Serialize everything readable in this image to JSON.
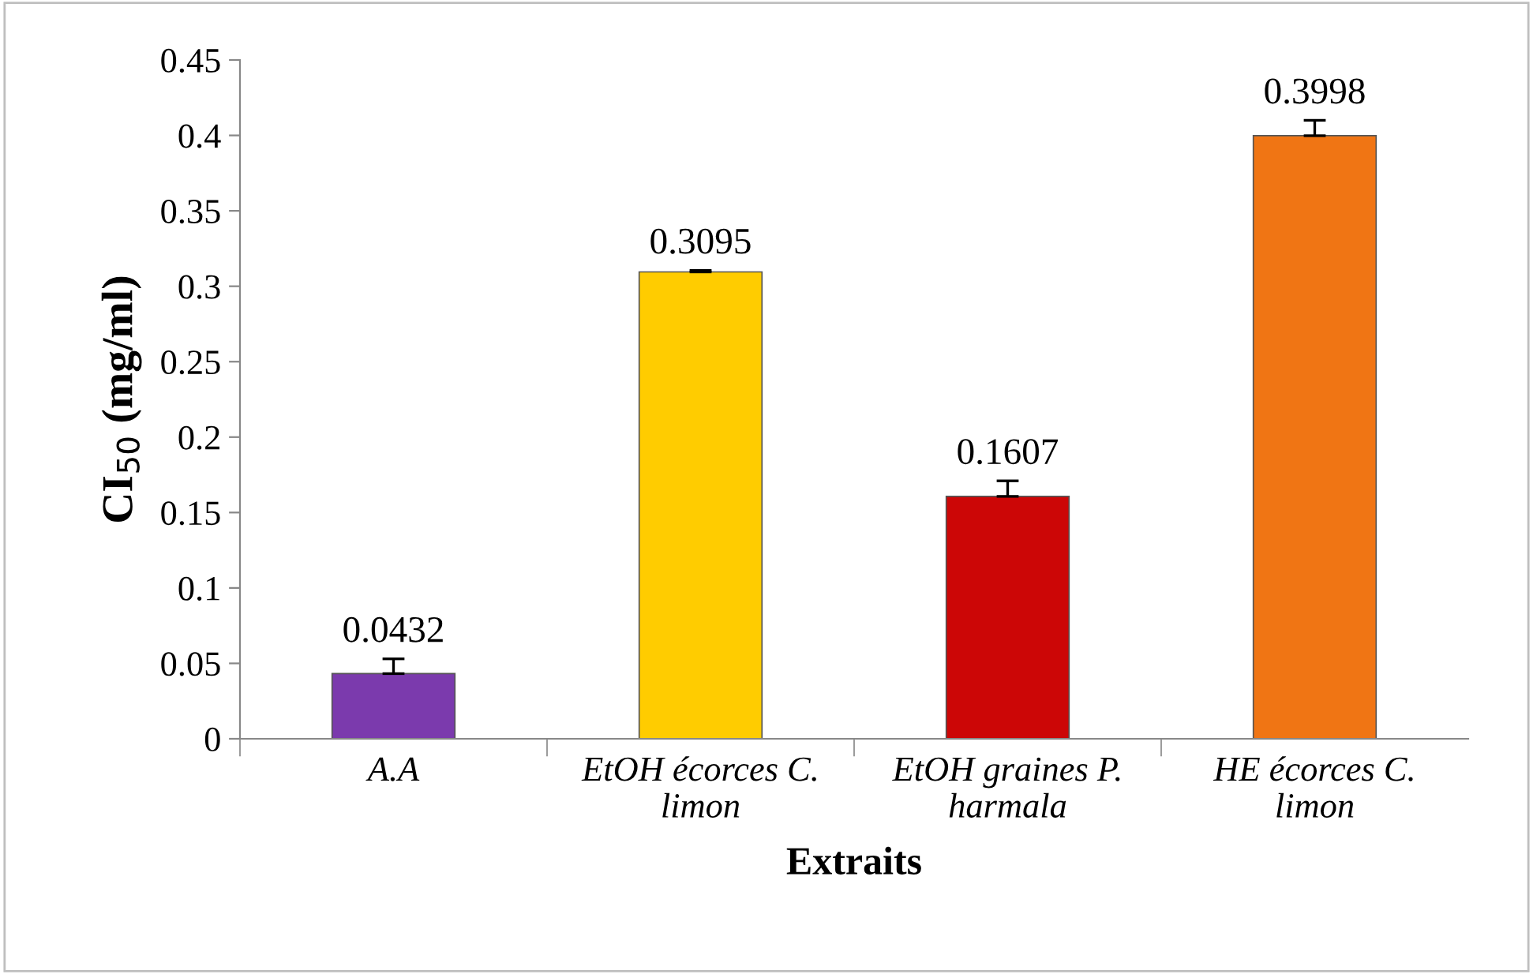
{
  "chart_data": {
    "type": "bar",
    "xlabel": "Extraits",
    "ylabel": "CI$_{50}$ (mg/ml)",
    "categories": [
      "A.A",
      "EtOH écorces C.\nlimon",
      "EtOH graines P.\nharmala",
      "HE écorces C.\nlimon"
    ],
    "values": [
      0.0432,
      0.3095,
      0.1607,
      0.3998
    ],
    "colors": [
      "#7b3aad",
      "#ffcc00",
      "#cc0606",
      "#f07514"
    ],
    "errors": [
      [
        0.0432,
        0.053
      ],
      [
        0.3095,
        0.3105
      ],
      [
        0.1607,
        0.171
      ],
      [
        0.3998,
        0.41
      ]
    ],
    "data_labels": true,
    "ylim": [
      0,
      0.45
    ],
    "yticks": [
      0,
      0.05,
      0.1,
      0.15,
      0.2,
      0.25,
      0.3,
      0.35,
      0.4,
      0.45
    ],
    "grid": false,
    "legend": false
  }
}
